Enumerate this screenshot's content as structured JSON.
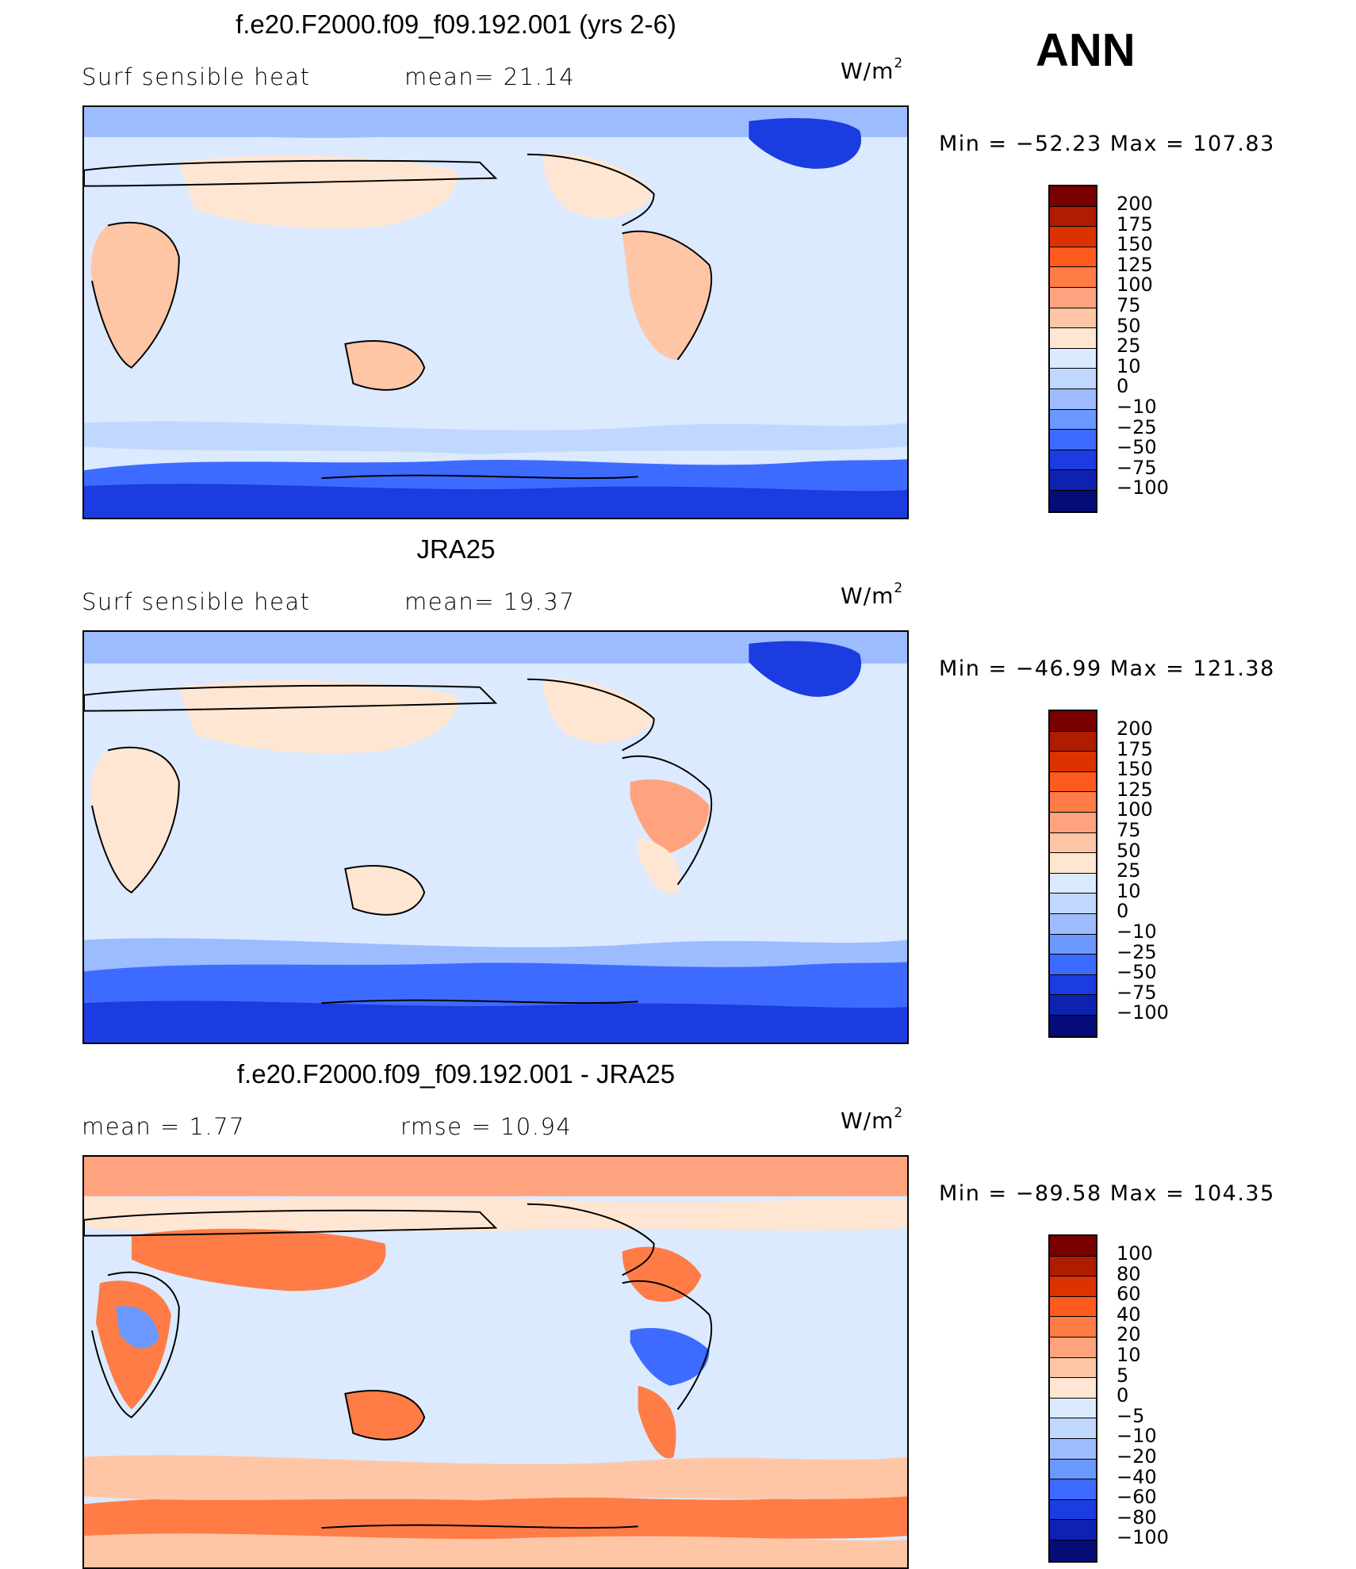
{
  "season": "ANN",
  "panels": [
    {
      "title": "f.e20.F2000.f09_f09.192.001 (yrs 2-6)",
      "left_label": "Surf  sensible  heat",
      "center_label": "mean=   21.14",
      "units_base": "W/m",
      "units_exp": "2",
      "minmax": "Min  =  −52.23  Max  =  107.83",
      "colorbar_labels": [
        "200",
        "175",
        "150",
        "125",
        "100",
        "75",
        "50",
        "25",
        "10",
        "0",
        "−10",
        "−25",
        "−50",
        "−75",
        "−100"
      ],
      "colorbar_colors": [
        "#7a0000",
        "#b01c00",
        "#dc3200",
        "#ff5a1e",
        "#ff7c46",
        "#ffa37e",
        "#ffc6a6",
        "#ffe6d2",
        "#dbeaff",
        "#c0d8ff",
        "#9cbcff",
        "#6a98ff",
        "#3e6bff",
        "#1a3ce0",
        "#0d22b0",
        "#060c78"
      ]
    },
    {
      "title": "JRA25",
      "left_label": "Surf  sensible  heat",
      "center_label": "mean=   19.37",
      "units_base": "W/m",
      "units_exp": "2",
      "minmax": "Min  =  −46.99  Max  =  121.38",
      "colorbar_labels": [
        "200",
        "175",
        "150",
        "125",
        "100",
        "75",
        "50",
        "25",
        "10",
        "0",
        "−10",
        "−25",
        "−50",
        "−75",
        "−100"
      ],
      "colorbar_colors": [
        "#7a0000",
        "#b01c00",
        "#dc3200",
        "#ff5a1e",
        "#ff7c46",
        "#ffa37e",
        "#ffc6a6",
        "#ffe6d2",
        "#dbeaff",
        "#c0d8ff",
        "#9cbcff",
        "#6a98ff",
        "#3e6bff",
        "#1a3ce0",
        "#0d22b0",
        "#060c78"
      ]
    },
    {
      "title": "f.e20.F2000.f09_f09.192.001 - JRA25",
      "left_label": "mean  =     1.77",
      "center_label": "rmse  =    10.94",
      "units_base": "W/m",
      "units_exp": "2",
      "minmax": "Min  =  −89.58  Max  =  104.35",
      "colorbar_labels": [
        "100",
        "80",
        "60",
        "40",
        "20",
        "10",
        "5",
        "0",
        "−5",
        "−10",
        "−20",
        "−40",
        "−60",
        "−80",
        "−100"
      ],
      "colorbar_colors": [
        "#7a0000",
        "#b01c00",
        "#dc3200",
        "#ff5a1e",
        "#ff7c46",
        "#ffa37e",
        "#ffc6a6",
        "#ffe6d2",
        "#dbeaff",
        "#c0d8ff",
        "#9cbcff",
        "#6a98ff",
        "#3e6bff",
        "#1a3ce0",
        "#0d22b0",
        "#060c78"
      ]
    }
  ]
}
